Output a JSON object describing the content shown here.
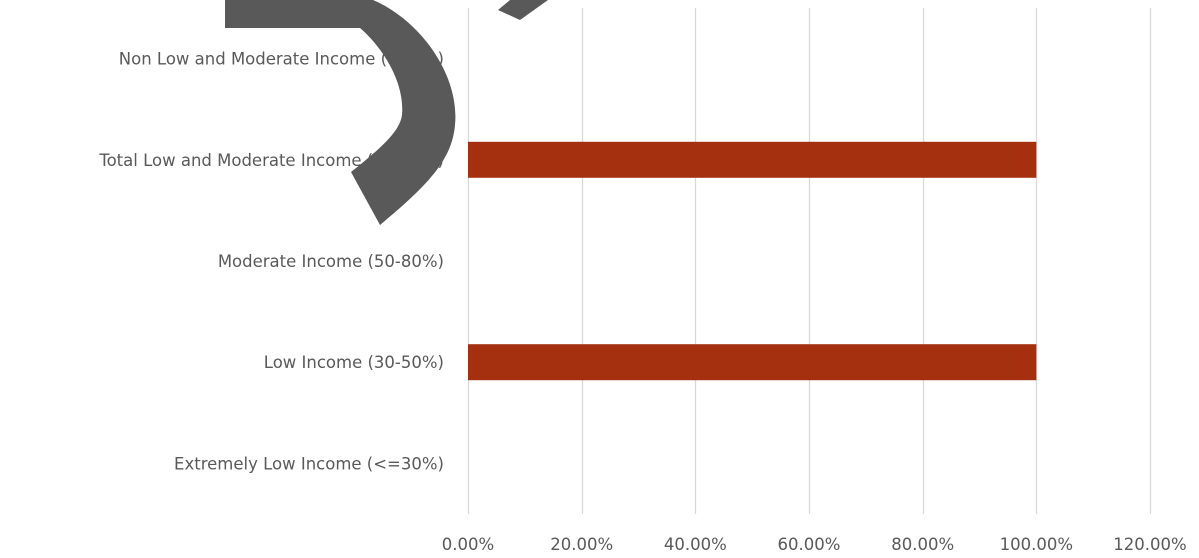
{
  "chart_data": {
    "type": "bar",
    "orientation": "horizontal",
    "categories": [
      "Extremely Low Income (<=30%)",
      "Low Income (30-50%)",
      "Moderate Income (50-80%)",
      "Total Low and Moderate Income (<=80%)",
      "Non Low and Moderate Income (>80%)"
    ],
    "values": [
      0,
      100,
      0,
      100,
      0
    ],
    "xlim": [
      0,
      120
    ],
    "xticks": [
      0,
      20,
      40,
      60,
      80,
      100,
      120
    ],
    "xtick_labels": [
      "0.00%",
      "20.00%",
      "40.00%",
      "60.00%",
      "80.00%",
      "100.00%",
      "120.00%"
    ],
    "title": "",
    "xlabel": "",
    "ylabel": "",
    "grid": "vertical",
    "legend": "none",
    "bar_color": "#A5300F",
    "grid_color": "#D9D9D9",
    "text_color": "#595959",
    "watermark_color": "#595959"
  }
}
